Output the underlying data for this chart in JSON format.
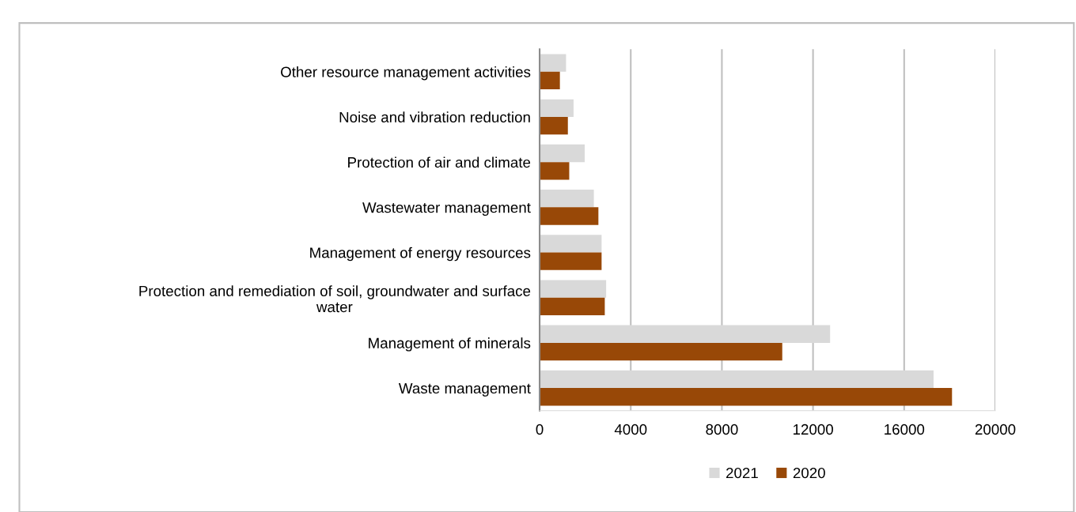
{
  "chart_data": {
    "type": "bar",
    "orientation": "horizontal",
    "categories": [
      "Other resource management activities",
      "Noise and vibration reduction",
      "Protection of air and climate",
      "Wastewater management",
      "Management of energy resources",
      "Protection and remediation of soil, groundwater and surface\nwater",
      "Management of minerals",
      "Waste management"
    ],
    "series": [
      {
        "name": "2021",
        "color": "#d9d9d9",
        "values": [
          1160,
          1490,
          1980,
          2380,
          2720,
          2920,
          12750,
          17290
        ]
      },
      {
        "name": "2020",
        "color": "#984807",
        "values": [
          890,
          1240,
          1300,
          2580,
          2720,
          2860,
          10650,
          18100
        ]
      }
    ],
    "xlim": [
      0,
      20000
    ],
    "xticks": [
      0,
      4000,
      8000,
      12000,
      16000,
      20000
    ],
    "grid": "x",
    "legend": "bottom"
  }
}
